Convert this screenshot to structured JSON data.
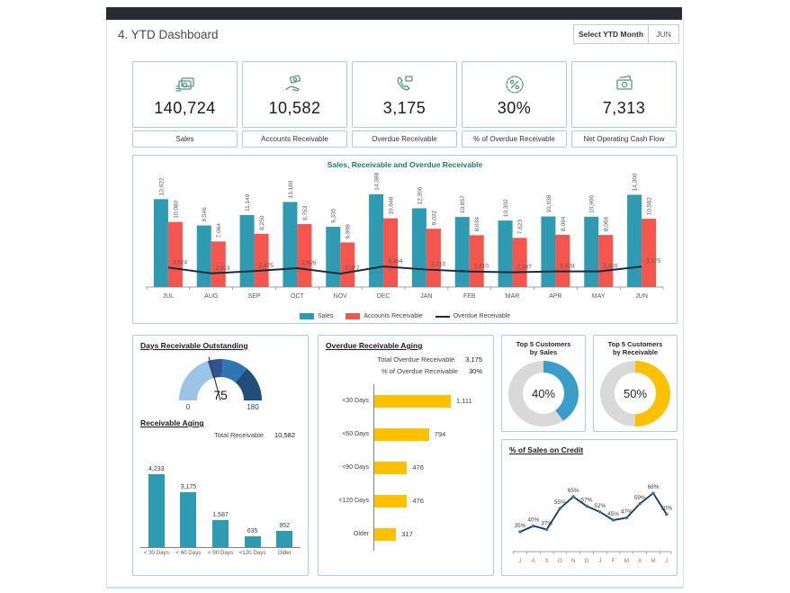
{
  "header": {
    "title": "4. YTD Dashboard",
    "select_label": "Select YTD Month",
    "selected_month": "JUN"
  },
  "kpis": [
    {
      "value": "140,724",
      "label": "Sales",
      "icon": "cash-stack-icon"
    },
    {
      "value": "10,582",
      "label": "Accounts Receivable",
      "icon": "hand-money-icon"
    },
    {
      "value": "3,175",
      "label": "Overdue Receivable",
      "icon": "phone-bill-icon"
    },
    {
      "value": "30%",
      "label": "% of Overdue Receivable",
      "icon": "percent-badge-icon"
    },
    {
      "value": "7,313",
      "label": "Net Operating Cash Flow",
      "icon": "banknote-icon"
    }
  ],
  "icon_color": "#53997e",
  "chart_data": [
    {
      "id": "sales-receivable-combo",
      "type": "bar",
      "title": "Sales, Receivable and Overdue Receivable",
      "categories": [
        "JUL",
        "AUG",
        "SEP",
        "OCT",
        "NOV",
        "DEC",
        "JAN",
        "FEB",
        "MAR",
        "APR",
        "MAY",
        "JUN"
      ],
      "series": [
        {
          "name": "Sales",
          "kind": "bar",
          "color": "#2e9bb3",
          "values": [
            13622,
            9546,
            11149,
            13180,
            9335,
            14388,
            12206,
            10857,
            10302,
            10938,
            10900,
            14300
          ]
        },
        {
          "name": "Accounts Receivable",
          "kind": "bar",
          "color": "#f4554d",
          "values": [
            10080,
            7064,
            8250,
            9753,
            6908,
            10648,
            9032,
            8034,
            7623,
            8094,
            8066,
            10582
          ]
        },
        {
          "name": "Overdue Receivable",
          "kind": "line",
          "color": "#1b2a3b",
          "values": [
            3024,
            2119,
            2475,
            2926,
            2077,
            3194,
            2710,
            2410,
            2287,
            2428,
            2420,
            3175
          ]
        }
      ],
      "ylim": [
        0,
        14500
      ],
      "grid": false,
      "legend_position": "bottom"
    },
    {
      "id": "days-receivable-gauge",
      "type": "gauge",
      "title": "Days Receivable Outstanding",
      "min": 0,
      "max": 180,
      "value": 75,
      "min_label": "0",
      "max_label": "180",
      "segments": [
        {
          "to": 0.4,
          "color": "#9dc3e6"
        },
        {
          "to": 0.52,
          "color": "#2f5496"
        },
        {
          "to": 0.72,
          "color": "#2e75b6"
        },
        {
          "to": 1.0,
          "color": "#1f4e79"
        }
      ]
    },
    {
      "id": "receivable-aging",
      "type": "bar",
      "title": "Receivable Aging",
      "subtitle_label": "Total Receivable",
      "subtitle_value": "10,582",
      "categories": [
        "< 30 Days",
        "< 60 Days",
        "< 90 Days",
        "<120 Days",
        "Older"
      ],
      "values": [
        4233,
        3175,
        1587,
        635,
        952
      ],
      "color": "#2e9bb3",
      "ylim": [
        0,
        4400
      ]
    },
    {
      "id": "overdue-receivable-aging",
      "type": "bar",
      "title": "Overdue Receivable Aging",
      "stats": [
        {
          "label": "Total Overdue Receivable",
          "value": "3,175"
        },
        {
          "label": "% of Overdue Receivable",
          "value": "30%"
        }
      ],
      "categories": [
        "<30 Days",
        "<60 Days",
        "<90 Days",
        "<120 Days",
        "Older"
      ],
      "values": [
        1111,
        794,
        476,
        476,
        317
      ],
      "color": "#ffc000",
      "orientation": "horizontal",
      "xlim": [
        0,
        1150
      ]
    },
    {
      "id": "top5-customers-by-sales",
      "type": "pie",
      "title_line1": "Top 5 Customers",
      "title_line2": "by Sales",
      "value": 40,
      "label": "40%",
      "color": "#3a9cc9",
      "track_color": "#d9d9d9"
    },
    {
      "id": "top5-customers-by-receivable",
      "type": "pie",
      "title_line1": "Top 5 Customers",
      "title_line2": "by Receivable",
      "value": 50,
      "label": "50%",
      "color": "#ffc000",
      "track_color": "#d9d9d9"
    },
    {
      "id": "sales-on-credit",
      "type": "line",
      "title": "% of Sales on Credit",
      "categories": [
        "J",
        "A",
        "S",
        "O",
        "N",
        "D",
        "J",
        "F",
        "M",
        "A",
        "M",
        "J"
      ],
      "values": [
        35,
        40,
        37,
        55,
        65,
        57,
        52,
        45,
        47,
        59,
        68,
        50
      ],
      "labels": [
        "35%",
        "40%",
        "37%",
        "55%",
        "65%",
        "57%",
        "52%",
        "45%",
        "47%",
        "59%",
        "68%",
        "50%"
      ],
      "line_color": "#17375e",
      "marker_color": "#2e75b6",
      "ylim": [
        30,
        75
      ]
    }
  ]
}
